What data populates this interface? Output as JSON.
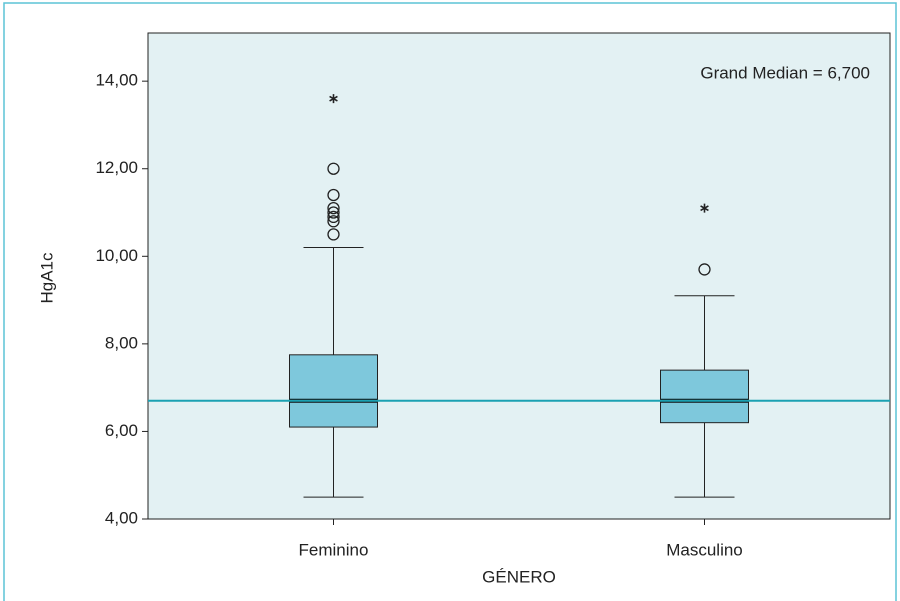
{
  "chart_data": {
    "type": "box",
    "x_label": "GÉNERO",
    "y_label": "HgA1c",
    "annotation": "Grand Median = 6,700",
    "grand_median": 6.7,
    "grand_median_color": "#1ba1b2",
    "categories": [
      "Feminino",
      "Masculino"
    ],
    "box_color": "#7ec8dc",
    "whisker_low": [
      4.5,
      4.5
    ],
    "q1": [
      6.1,
      6.2
    ],
    "median": [
      6.7,
      6.7
    ],
    "q3": [
      7.75,
      7.4
    ],
    "whisker_high": [
      10.2,
      9.1
    ],
    "outliers": [
      [
        12.0,
        11.4,
        11.1,
        11.0,
        10.9,
        10.8,
        10.5
      ],
      [
        9.7
      ]
    ],
    "extremes": [
      [
        13.6
      ],
      [
        11.1
      ]
    ],
    "ylim": [
      4,
      15.1
    ],
    "yticks": [
      {
        "value": 4,
        "label": "4,00"
      },
      {
        "value": 6,
        "label": "6,00"
      },
      {
        "value": 8,
        "label": "8,00"
      },
      {
        "value": 10,
        "label": "10,00"
      },
      {
        "value": 12,
        "label": "12,00"
      },
      {
        "value": 14,
        "label": "14,00"
      }
    ]
  }
}
